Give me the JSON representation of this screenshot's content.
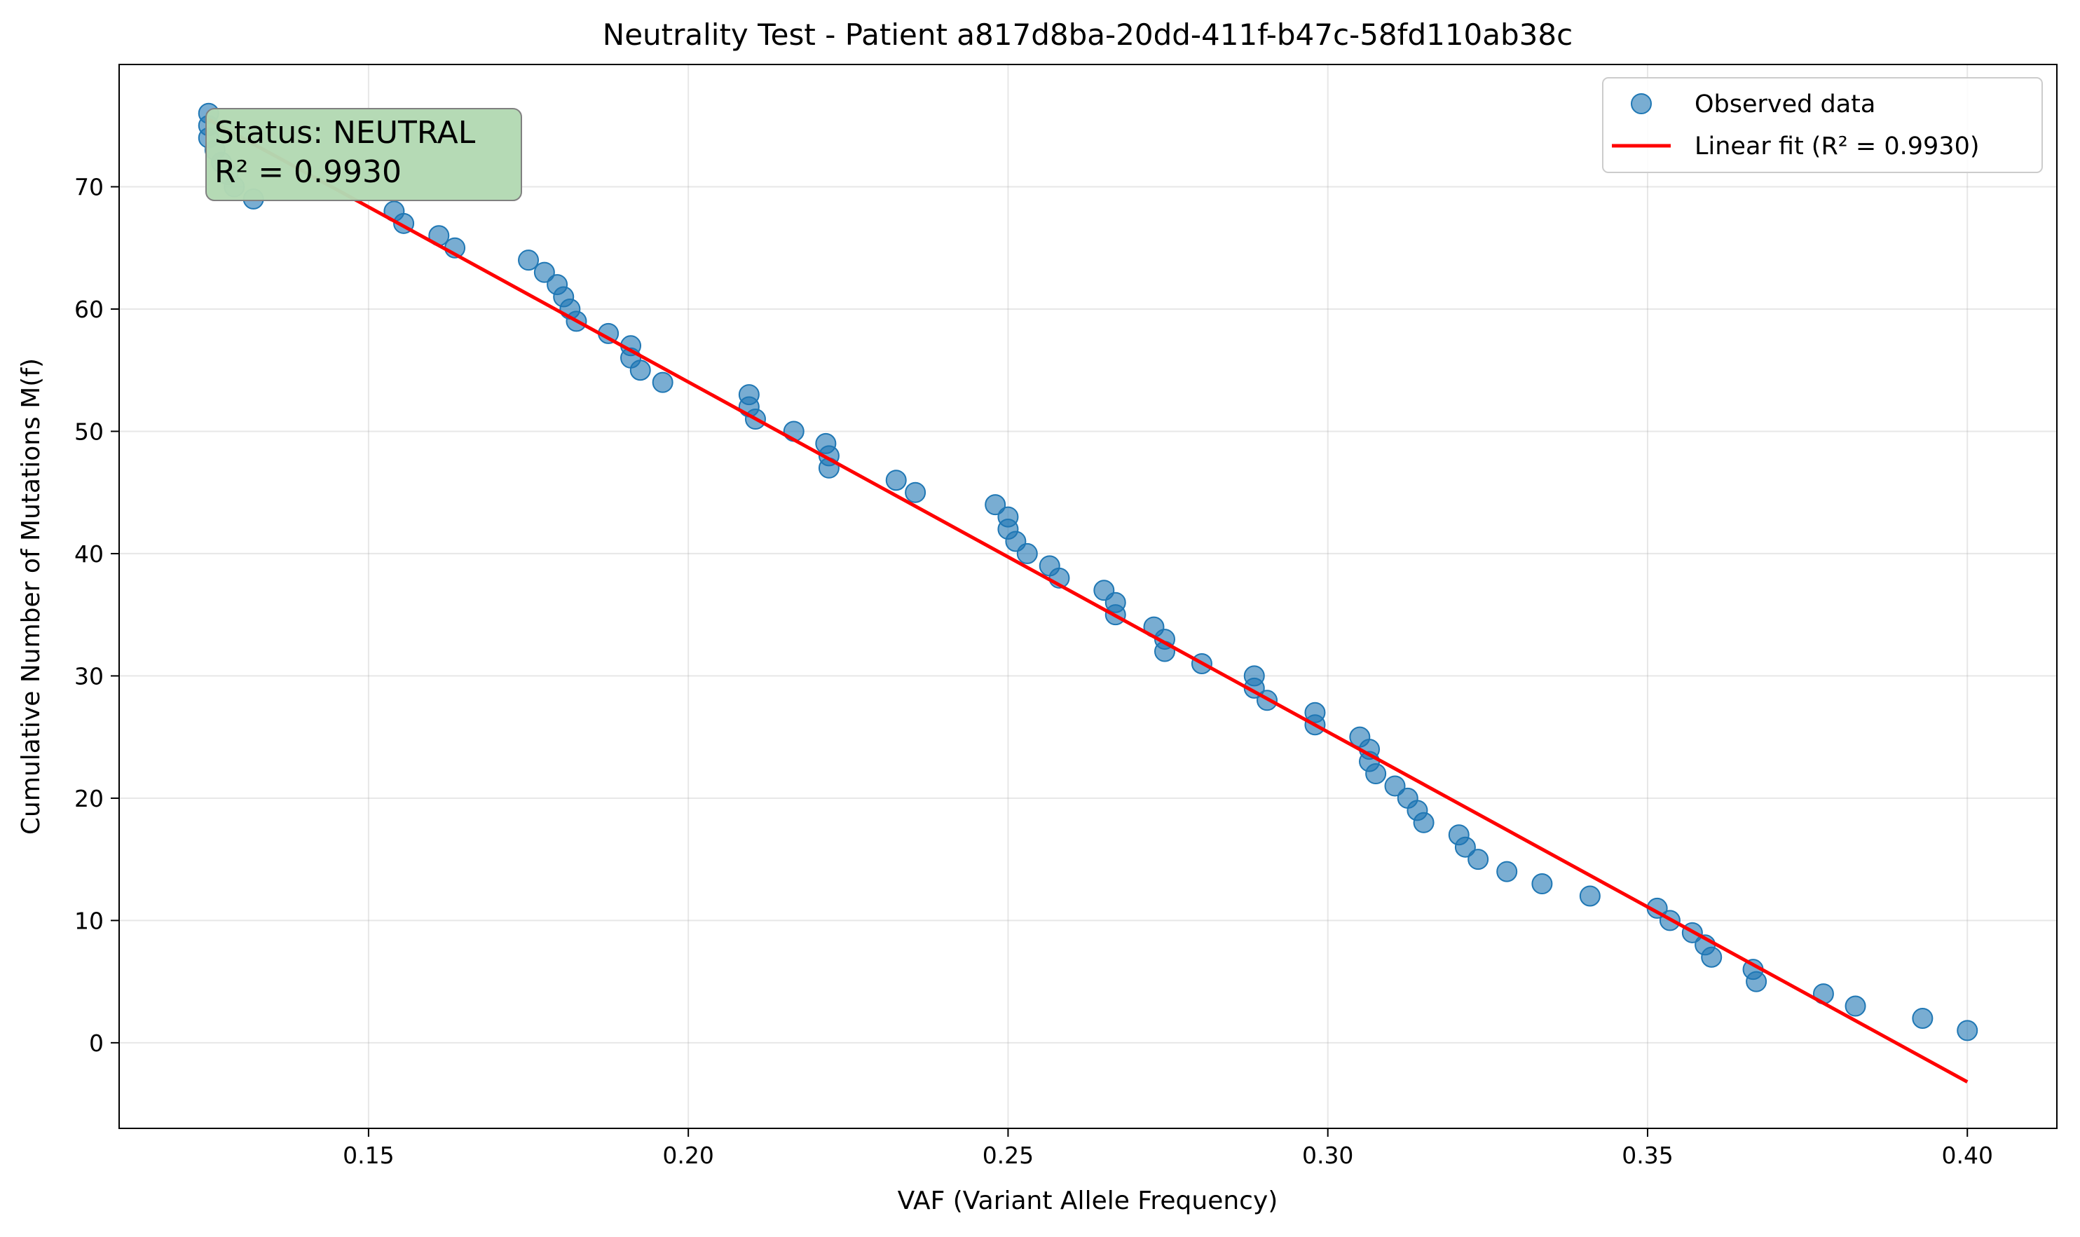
{
  "chart_data": {
    "type": "scatter",
    "title": "Neutrality Test - Patient a817d8ba-20dd-411f-b47c-58fd110ab38c",
    "xlabel": "VAF (Variant Allele Frequency)",
    "ylabel": "Cumulative Number of Mutations M(f)",
    "xlim": [
      0.111,
      0.414
    ],
    "ylim": [
      -7,
      80
    ],
    "xticks": [
      0.15,
      0.2,
      0.25,
      0.3,
      0.35,
      0.4
    ],
    "xtick_labels": [
      "0.15",
      "0.20",
      "0.25",
      "0.30",
      "0.35",
      "0.40"
    ],
    "yticks": [
      0,
      10,
      20,
      30,
      40,
      50,
      60,
      70
    ],
    "ytick_labels": [
      "0",
      "10",
      "20",
      "30",
      "40",
      "50",
      "60",
      "70"
    ],
    "grid": true,
    "legend_position": "top-right",
    "colors": {
      "points": "#1f77b4",
      "fit": "#ff0000",
      "status_box": "#b3d9b3"
    },
    "series": [
      {
        "name": "Observed data",
        "kind": "scatter",
        "x": [
          0.125,
          0.125,
          0.125,
          0.126,
          0.127,
          0.128,
          0.129,
          0.132,
          0.154,
          0.1555,
          0.161,
          0.1635,
          0.175,
          0.1775,
          0.1795,
          0.1805,
          0.1815,
          0.1825,
          0.1875,
          0.191,
          0.191,
          0.1925,
          0.196,
          0.2095,
          0.2095,
          0.2105,
          0.2165,
          0.2215,
          0.222,
          0.222,
          0.2325,
          0.2355,
          0.248,
          0.25,
          0.25,
          0.2512,
          0.253,
          0.2565,
          0.258,
          0.265,
          0.2668,
          0.2668,
          0.2728,
          0.2745,
          0.2745,
          0.2803,
          0.2885,
          0.2885,
          0.2905,
          0.298,
          0.298,
          0.305,
          0.3065,
          0.3065,
          0.3075,
          0.3105,
          0.3125,
          0.314,
          0.315,
          0.3205,
          0.3215,
          0.3235,
          0.328,
          0.3335,
          0.341,
          0.3515,
          0.3535,
          0.357,
          0.359,
          0.36,
          0.3665,
          0.367,
          0.3775,
          0.3825,
          0.393,
          0.4
        ],
        "y": [
          76,
          75,
          74,
          73,
          72,
          71,
          70,
          69,
          68,
          67,
          66,
          65,
          64,
          63,
          62,
          61,
          60,
          59,
          58,
          57,
          56,
          55,
          54,
          53,
          52,
          51,
          50,
          49,
          48,
          47,
          46,
          45,
          44,
          43,
          42,
          41,
          40,
          39,
          38,
          37,
          36,
          35,
          34,
          33,
          32,
          31,
          30,
          29,
          28,
          27,
          26,
          25,
          24,
          23,
          22,
          21,
          20,
          19,
          18,
          17,
          16,
          15,
          14,
          13,
          12,
          11,
          10,
          9,
          8,
          7,
          6,
          5,
          4,
          3,
          2,
          1
        ]
      },
      {
        "name": "Linear fit (R² = 0.9930)",
        "kind": "line",
        "x": [
          0.125,
          0.4
        ],
        "y": [
          75.5,
          -3.2
        ]
      }
    ],
    "annotation": {
      "lines": [
        "Status: NEUTRAL",
        "R² = 0.9930"
      ]
    }
  }
}
